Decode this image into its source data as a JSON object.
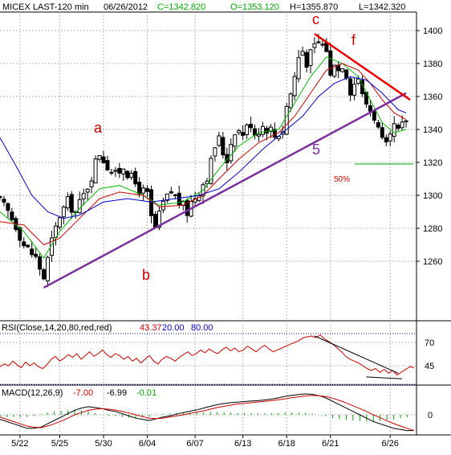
{
  "header": {
    "symbol": "MICEX LAST-120 min",
    "date": "06/26/2012",
    "close": "C=1342.820",
    "open": "O=1353.120",
    "high": "H=1355.870",
    "low": "L=1342.320"
  },
  "rsi_header": {
    "label": "RSI(Close,14,20,80,red,red)",
    "value": "43.37",
    "lower": "20.00",
    "upper": "80.00"
  },
  "macd_header": {
    "label": "MACD(12,26,9)",
    "macd": "-7.00",
    "signal": "-6.99",
    "hist": "-0.01"
  },
  "annotations": {
    "a": "a",
    "b": "b",
    "c": "c",
    "f": "f",
    "five": "5",
    "fifty": "50%"
  },
  "colors": {
    "price": "#000000",
    "ma_fast": "#00bb00",
    "ma_mid": "#cc0000",
    "ma_slow": "#0000cc",
    "trendline": "#7b2e9e",
    "resistance": "#ee0000",
    "rsi": "#cc0000",
    "macd": "#000000",
    "macd_signal": "#cc0000",
    "histogram": "#00aa00",
    "grid": "#b8b8b8"
  },
  "chart_data": [
    {
      "type": "candlestick",
      "title": "MICEX LAST-120 min",
      "x_tick_labels": [
        "5/22",
        "5/25",
        "5/30",
        "6/04",
        "6/07",
        "6/13",
        "6/18",
        "6/21",
        "6/26"
      ],
      "y_ticks": [
        1260,
        1280,
        1300,
        1320,
        1340,
        1360,
        1380,
        1400
      ],
      "ylim": [
        1240,
        1408
      ],
      "grid": true,
      "close_path": [
        [
          0,
          1296
        ],
        [
          2,
          1290
        ],
        [
          4,
          1282
        ],
        [
          6,
          1270
        ],
        [
          9,
          1262
        ],
        [
          11,
          1250
        ],
        [
          13,
          1272
        ],
        [
          15,
          1288
        ],
        [
          17,
          1296
        ],
        [
          19,
          1290
        ],
        [
          21,
          1300
        ],
        [
          23,
          1312
        ],
        [
          24,
          1320
        ],
        [
          25,
          1326
        ],
        [
          27,
          1318
        ],
        [
          29,
          1312
        ],
        [
          31,
          1318
        ],
        [
          33,
          1310
        ],
        [
          35,
          1304
        ],
        [
          37,
          1300
        ],
        [
          38,
          1286
        ],
        [
          39,
          1280
        ],
        [
          41,
          1295
        ],
        [
          43,
          1302
        ],
        [
          45,
          1296
        ],
        [
          47,
          1290
        ],
        [
          48,
          1296
        ],
        [
          50,
          1303
        ],
        [
          52,
          1312
        ],
        [
          53,
          1320
        ],
        [
          54,
          1330
        ],
        [
          55,
          1334
        ],
        [
          56,
          1326
        ],
        [
          57,
          1322
        ],
        [
          58,
          1332
        ],
        [
          59,
          1340
        ],
        [
          61,
          1338
        ],
        [
          63,
          1344
        ],
        [
          64,
          1338
        ],
        [
          66,
          1342
        ],
        [
          68,
          1340
        ],
        [
          69,
          1336
        ],
        [
          71,
          1340
        ],
        [
          72,
          1354
        ],
        [
          73,
          1362
        ],
        [
          74,
          1372
        ],
        [
          75,
          1384
        ],
        [
          76,
          1388
        ],
        [
          77,
          1381
        ],
        [
          79,
          1390
        ],
        [
          80,
          1393
        ],
        [
          82,
          1389
        ],
        [
          83,
          1372
        ],
        [
          84,
          1382
        ],
        [
          85,
          1376
        ],
        [
          86,
          1380
        ],
        [
          87,
          1374
        ],
        [
          88,
          1364
        ],
        [
          90,
          1372
        ],
        [
          91,
          1360
        ],
        [
          92,
          1356
        ],
        [
          93,
          1352
        ],
        [
          94,
          1348
        ],
        [
          95,
          1340
        ],
        [
          96,
          1332
        ],
        [
          97,
          1329
        ],
        [
          98,
          1334
        ],
        [
          99,
          1342
        ],
        [
          100,
          1338
        ],
        [
          101,
          1342
        ],
        [
          102,
          1346
        ]
      ],
      "series": [
        {
          "name": "MA fast",
          "points": [
            [
              0,
              1290
            ],
            [
              6,
              1278
            ],
            [
              11,
              1262
            ],
            [
              15,
              1278
            ],
            [
              20,
              1292
            ],
            [
              25,
              1304
            ],
            [
              30,
              1306
            ],
            [
              36,
              1300
            ],
            [
              40,
              1294
            ],
            [
              46,
              1296
            ],
            [
              51,
              1303
            ],
            [
              55,
              1316
            ],
            [
              60,
              1330
            ],
            [
              65,
              1338
            ],
            [
              70,
              1340
            ],
            [
              74,
              1356
            ],
            [
              78,
              1372
            ],
            [
              82,
              1384
            ],
            [
              86,
              1380
            ],
            [
              90,
              1372
            ],
            [
              93,
              1358
            ],
            [
              96,
              1344
            ],
            [
              99,
              1338
            ],
            [
              102,
              1340
            ]
          ]
        },
        {
          "name": "MA mid",
          "points": [
            [
              0,
              1284
            ],
            [
              6,
              1282
            ],
            [
              11,
              1270
            ],
            [
              15,
              1274
            ],
            [
              20,
              1286
            ],
            [
              25,
              1298
            ],
            [
              30,
              1302
            ],
            [
              36,
              1300
            ],
            [
              40,
              1293
            ],
            [
              46,
              1294
            ],
            [
              51,
              1300
            ],
            [
              55,
              1310
            ],
            [
              60,
              1322
            ],
            [
              65,
              1332
            ],
            [
              70,
              1338
            ],
            [
              74,
              1348
            ],
            [
              78,
              1362
            ],
            [
              82,
              1376
            ],
            [
              86,
              1380
            ],
            [
              90,
              1376
            ],
            [
              93,
              1368
            ],
            [
              96,
              1358
            ],
            [
              99,
              1350
            ],
            [
              102,
              1346
            ]
          ]
        },
        {
          "name": "MA slow",
          "points": [
            [
              0,
              1335
            ],
            [
              4,
              1318
            ],
            [
              8,
              1300
            ],
            [
              12,
              1290
            ],
            [
              16,
              1286
            ],
            [
              20,
              1288
            ],
            [
              26,
              1296
            ],
            [
              32,
              1298
            ],
            [
              38,
              1296
            ],
            [
              44,
              1298
            ],
            [
              50,
              1300
            ],
            [
              55,
              1304
            ],
            [
              60,
              1314
            ],
            [
              66,
              1328
            ],
            [
              72,
              1340
            ],
            [
              76,
              1348
            ],
            [
              80,
              1360
            ],
            [
              84,
              1368
            ],
            [
              88,
              1372
            ],
            [
              92,
              1370
            ],
            [
              96,
              1362
            ],
            [
              100,
              1352
            ],
            [
              102,
              1350
            ]
          ]
        }
      ],
      "trendlines": [
        {
          "name": "support",
          "from": [
            11,
            1244
          ],
          "to": [
            102,
            1362
          ]
        },
        {
          "name": "resistance",
          "from": [
            79,
            1398
          ],
          "to": [
            103,
            1358
          ]
        }
      ],
      "fifty_percent_level": 1319
    },
    {
      "type": "line",
      "title": "RSI(Close,14,20,80,red,red)",
      "y_ticks": [
        45,
        70
      ],
      "ylim": [
        28,
        82
      ],
      "last_value": 43.37,
      "values": [
        44,
        47,
        45,
        50,
        46,
        43,
        49,
        45,
        48,
        44,
        42,
        46,
        52,
        55,
        50,
        53,
        57,
        54,
        58,
        52,
        56,
        60,
        55,
        58,
        62,
        57,
        54,
        58,
        56,
        52,
        55,
        50,
        53,
        48,
        52,
        56,
        50,
        47,
        52,
        55,
        53,
        50,
        54,
        57,
        60,
        56,
        58,
        62,
        59,
        63,
        60,
        58,
        62,
        65,
        61,
        64,
        60,
        62,
        66,
        63,
        60,
        64,
        67,
        63,
        60,
        62,
        64,
        66,
        68,
        70,
        72,
        75,
        76,
        77,
        75,
        78,
        74,
        71,
        68,
        64,
        60,
        55,
        52,
        50,
        48,
        45,
        42,
        40,
        42,
        38,
        41,
        37,
        40,
        35,
        38,
        41,
        44,
        43
      ]
    },
    {
      "type": "line",
      "title": "MACD(12,26,9)",
      "y_ticks": [
        0
      ],
      "ylim": [
        -8,
        12
      ],
      "macd": [
        -2,
        -3,
        -4,
        -5,
        -6,
        -6,
        -5.5,
        -4,
        -2.5,
        -1,
        0.5,
        2,
        3,
        3.6,
        3.2,
        2.8,
        2,
        1.5,
        0.5,
        -0.5,
        -1.5,
        -2,
        -2.5,
        -1.8,
        -1,
        -0.5,
        0.3,
        1,
        1.6,
        2.2,
        3,
        3.8,
        4.5,
        5,
        5.4,
        5.6,
        5.9,
        6.1,
        6.3,
        6.6,
        7,
        7.5,
        8.2,
        8.6,
        9,
        9.3,
        9.1,
        8.5,
        7.5,
        6,
        4.5,
        3,
        1.5,
        0,
        -1.5,
        -3,
        -4,
        -5,
        -6,
        -6.5,
        -7,
        -7
      ],
      "signal": [
        -1,
        -2,
        -3,
        -4,
        -5,
        -5.5,
        -5.7,
        -5,
        -4,
        -2.8,
        -1.5,
        0,
        1,
        2,
        2.5,
        2.7,
        2.5,
        2.1,
        1.5,
        0.8,
        0,
        -0.8,
        -1.5,
        -1.7,
        -1.5,
        -1,
        -0.5,
        0,
        0.6,
        1.2,
        1.8,
        2.5,
        3.2,
        3.8,
        4.3,
        4.8,
        5.1,
        5.4,
        5.7,
        6,
        6.3,
        6.7,
        7.1,
        7.6,
        8,
        8.4,
        8.6,
        8.5,
        8.1,
        7.4,
        6.4,
        5.3,
        4,
        2.8,
        1.5,
        0,
        -1.3,
        -2.7,
        -3.9,
        -5,
        -6,
        -6.99
      ],
      "histogram": [
        -1,
        -1,
        -1,
        -1,
        -1,
        -0.5,
        0.2,
        1,
        1.5,
        1.8,
        2,
        2,
        2,
        1.6,
        0.7,
        0.1,
        -0.5,
        -0.6,
        -1,
        -1.3,
        -1.5,
        -1.2,
        -1,
        -0.1,
        0.5,
        0.5,
        0.8,
        1,
        1,
        1,
        1.2,
        1.3,
        1.3,
        1.2,
        1.1,
        0.8,
        0.8,
        0.7,
        0.6,
        0.6,
        0.7,
        0.8,
        1.1,
        1,
        1,
        0.9,
        0.5,
        0,
        -0.6,
        -1.4,
        -1.9,
        -2.3,
        -2.5,
        -2.8,
        -3,
        -3,
        -2.7,
        -2.3,
        -2.1,
        -1.5,
        -1,
        -0.01
      ]
    }
  ]
}
